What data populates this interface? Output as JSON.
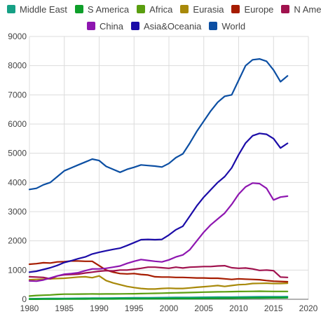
{
  "chart_data": {
    "type": "line",
    "title": "",
    "xlabel": "",
    "ylabel": "",
    "xlim": [
      1980,
      2020
    ],
    "ylim": [
      0,
      9000
    ],
    "x_ticks": [
      "1980",
      "1985",
      "1990",
      "1995",
      "2000",
      "2005",
      "2010",
      "2015",
      "2020"
    ],
    "y_ticks": [
      "0",
      "1000",
      "2000",
      "3000",
      "4000",
      "5000",
      "6000",
      "7000",
      "8000",
      "9000"
    ],
    "grid": true,
    "legend_position": "top",
    "x": [
      1980,
      1981,
      1982,
      1983,
      1984,
      1985,
      1986,
      1987,
      1988,
      1989,
      1990,
      1991,
      1992,
      1993,
      1994,
      1995,
      1996,
      1997,
      1998,
      1999,
      2000,
      2001,
      2002,
      2003,
      2004,
      2005,
      2006,
      2007,
      2008,
      2009,
      2010,
      2011,
      2012,
      2013,
      2014,
      2015,
      2016,
      2017
    ],
    "series": [
      {
        "name": "Middle East",
        "color": "#16a085",
        "values": [
          20,
          22,
          24,
          26,
          28,
          30,
          32,
          34,
          36,
          38,
          40,
          42,
          44,
          46,
          48,
          50,
          52,
          54,
          56,
          58,
          60,
          62,
          64,
          66,
          68,
          70,
          72,
          74,
          76,
          78,
          80,
          82,
          84,
          86,
          88,
          90,
          90,
          92
        ]
      },
      {
        "name": "S America",
        "color": "#0e9f2a",
        "values": [
          2,
          3,
          4,
          5,
          6,
          7,
          8,
          9,
          10,
          11,
          12,
          12,
          13,
          14,
          15,
          16,
          17,
          18,
          19,
          20,
          22,
          23,
          24,
          25,
          27,
          30,
          32,
          34,
          36,
          38,
          40,
          42,
          44,
          46,
          48,
          50,
          51,
          52
        ]
      },
      {
        "name": "Africa",
        "color": "#5a9e10",
        "values": [
          110,
          130,
          140,
          150,
          165,
          175,
          175,
          178,
          180,
          182,
          180,
          182,
          183,
          185,
          188,
          190,
          195,
          200,
          205,
          210,
          215,
          220,
          225,
          230,
          238,
          245,
          250,
          255,
          258,
          262,
          266,
          270,
          272,
          275,
          272,
          270,
          268,
          270
        ]
      },
      {
        "name": "Eurasia",
        "color": "#a8890a",
        "values": [
          670,
          680,
          690,
          700,
          710,
          720,
          740,
          760,
          770,
          740,
          800,
          640,
          560,
          500,
          440,
          400,
          370,
          350,
          350,
          370,
          380,
          370,
          370,
          390,
          410,
          430,
          450,
          470,
          440,
          470,
          500,
          510,
          540,
          545,
          550,
          540,
          540,
          550
        ]
      },
      {
        "name": "Europe",
        "color": "#a61c00",
        "values": [
          1200,
          1220,
          1250,
          1240,
          1280,
          1290,
          1310,
          1310,
          1300,
          1300,
          1150,
          1000,
          930,
          880,
          870,
          880,
          850,
          830,
          770,
          760,
          760,
          750,
          750,
          740,
          730,
          730,
          720,
          720,
          700,
          680,
          700,
          690,
          680,
          670,
          640,
          620,
          610,
          600
        ]
      },
      {
        "name": "N America",
        "color": "#a0124e",
        "values": [
          770,
          760,
          750,
          700,
          800,
          840,
          850,
          860,
          900,
          930,
          960,
          980,
          970,
          1000,
          1000,
          1030,
          1060,
          1100,
          1100,
          1080,
          1060,
          1100,
          1070,
          1100,
          1110,
          1120,
          1120,
          1140,
          1150,
          1080,
          1060,
          1070,
          1040,
          990,
          1000,
          980,
          760,
          750
        ]
      },
      {
        "name": "China",
        "color": "#8e16b0",
        "values": [
          630,
          620,
          660,
          730,
          800,
          860,
          880,
          910,
          980,
          1040,
          1040,
          1060,
          1100,
          1140,
          1230,
          1300,
          1360,
          1330,
          1300,
          1280,
          1350,
          1450,
          1520,
          1700,
          2000,
          2300,
          2550,
          2750,
          2950,
          3250,
          3600,
          3850,
          3980,
          3960,
          3800,
          3400,
          3500,
          3530
        ]
      },
      {
        "name": "Asia&Oceania",
        "color": "#1b0ca8",
        "values": [
          930,
          960,
          1020,
          1080,
          1160,
          1260,
          1320,
          1390,
          1450,
          1550,
          1610,
          1660,
          1710,
          1750,
          1840,
          1940,
          2040,
          2050,
          2040,
          2050,
          2200,
          2380,
          2500,
          2850,
          3200,
          3500,
          3750,
          4000,
          4200,
          4500,
          4950,
          5350,
          5600,
          5680,
          5650,
          5500,
          5180,
          5340
        ]
      },
      {
        "name": "World",
        "color": "#0c4fa3",
        "values": [
          3760,
          3800,
          3920,
          4000,
          4200,
          4400,
          4500,
          4600,
          4700,
          4800,
          4750,
          4550,
          4450,
          4350,
          4450,
          4520,
          4600,
          4580,
          4560,
          4530,
          4650,
          4850,
          4980,
          5350,
          5750,
          6100,
          6450,
          6750,
          6950,
          7000,
          7500,
          8000,
          8200,
          8230,
          8150,
          7850,
          7450,
          7650
        ]
      }
    ]
  }
}
